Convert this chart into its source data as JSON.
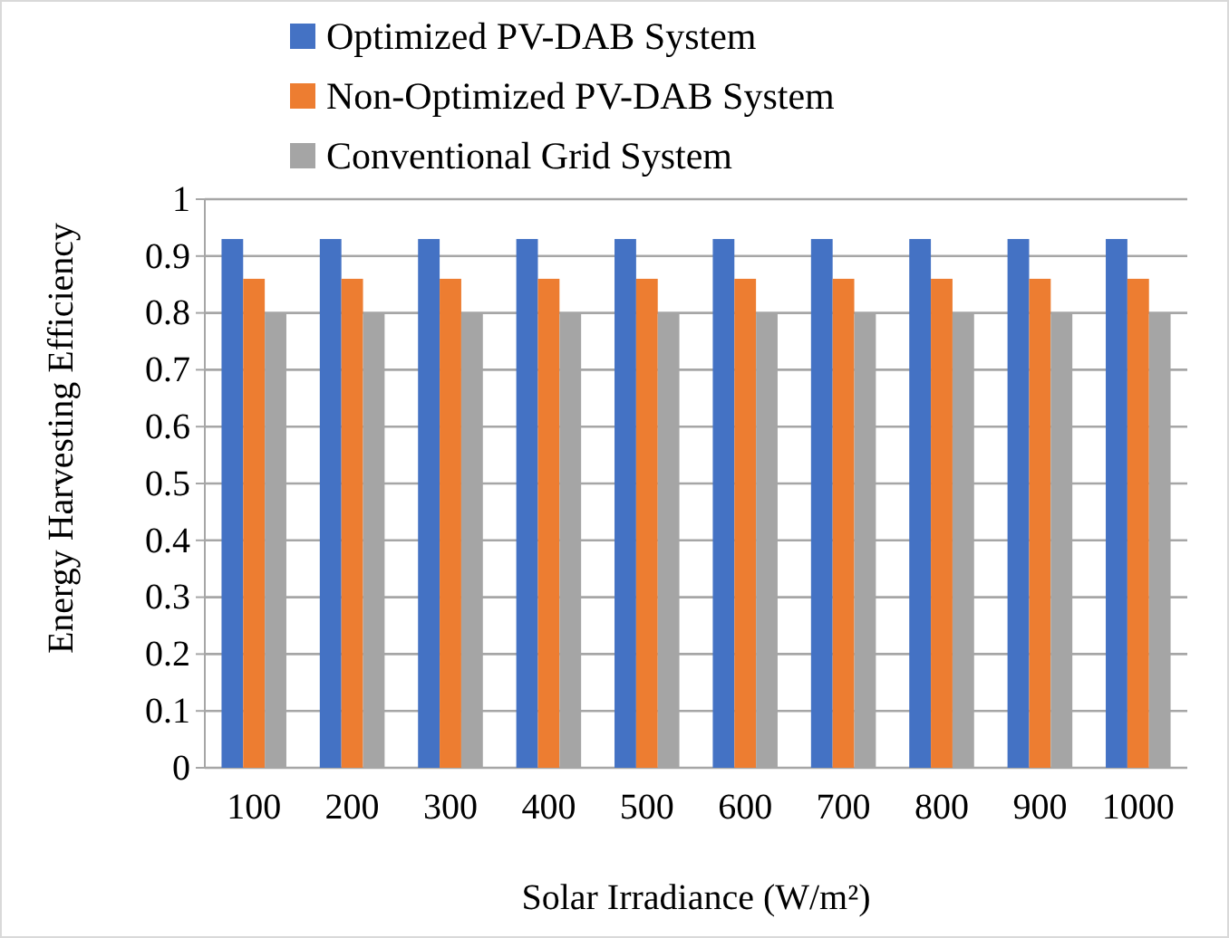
{
  "chart_data": {
    "type": "bar",
    "xlabel": "Solar Irradiance (W/m²)",
    "ylabel": "Energy Harvesting Efficiency",
    "categories": [
      "100",
      "200",
      "300",
      "400",
      "500",
      "600",
      "700",
      "800",
      "900",
      "1000"
    ],
    "series": [
      {
        "name": "Optimized PV-DAB System",
        "color": "#4472c4",
        "values": [
          0.93,
          0.93,
          0.93,
          0.93,
          0.93,
          0.93,
          0.93,
          0.93,
          0.93,
          0.93
        ]
      },
      {
        "name": "Non-Optimized PV-DAB System",
        "color": "#ed7d31",
        "values": [
          0.86,
          0.86,
          0.86,
          0.86,
          0.86,
          0.86,
          0.86,
          0.86,
          0.86,
          0.86
        ]
      },
      {
        "name": "Conventional Grid System",
        "color": "#a5a5a5",
        "values": [
          0.8,
          0.8,
          0.8,
          0.8,
          0.8,
          0.8,
          0.8,
          0.8,
          0.8,
          0.8
        ]
      }
    ],
    "ylim": [
      0,
      1
    ],
    "yticks": [
      0,
      0.1,
      0.2,
      0.3,
      0.4,
      0.5,
      0.6,
      0.7,
      0.8,
      0.9,
      1
    ],
    "grid": "y",
    "legend": "top"
  }
}
